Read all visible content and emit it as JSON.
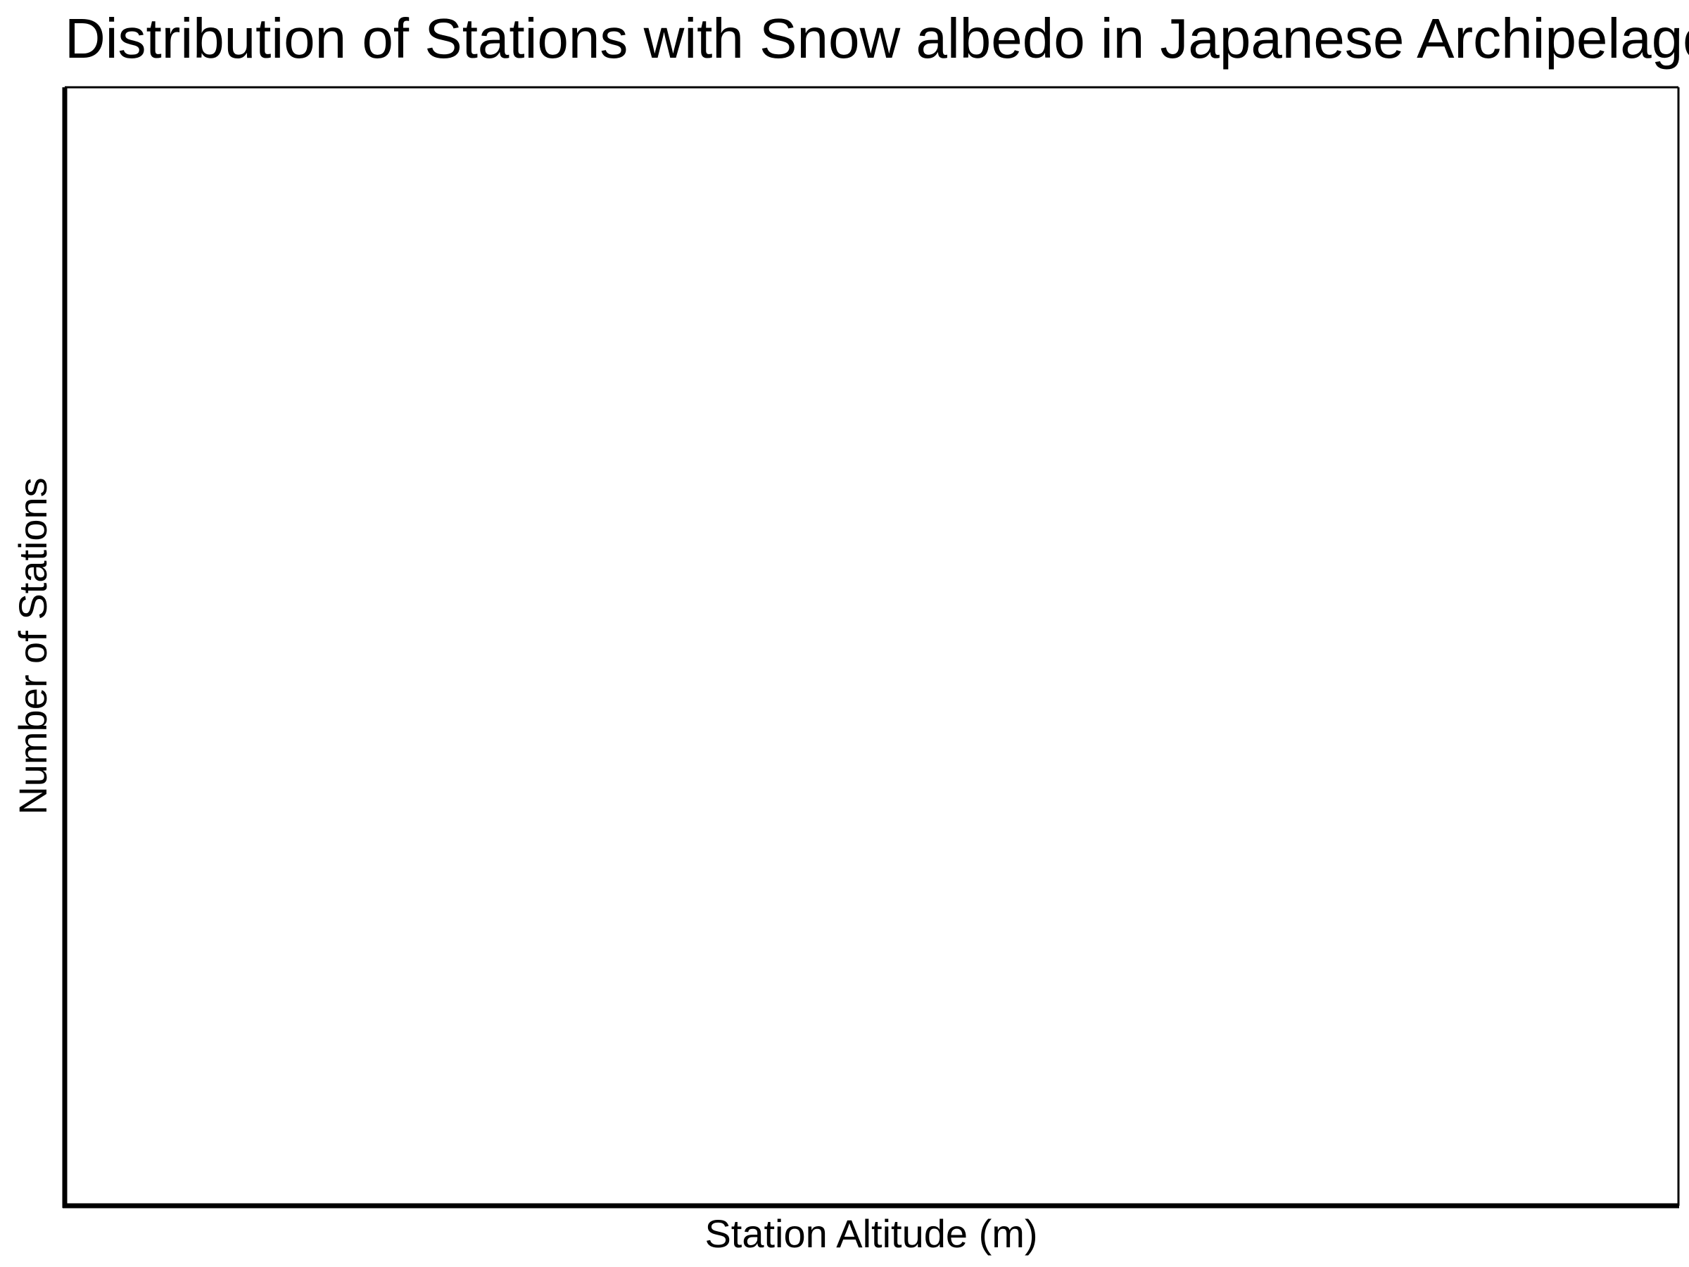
{
  "chart_data": {
    "type": "bar",
    "title": "Distribution of Stations with Snow albedo in Japanese Archipelago",
    "xlabel": "Station Altitude (m)",
    "ylabel": "Number of Stations",
    "categories": [],
    "values": [],
    "grid": false,
    "colors": {
      "axis": "#000000",
      "frame": "#000000",
      "background": "#ffffff",
      "text": "#000000"
    }
  }
}
